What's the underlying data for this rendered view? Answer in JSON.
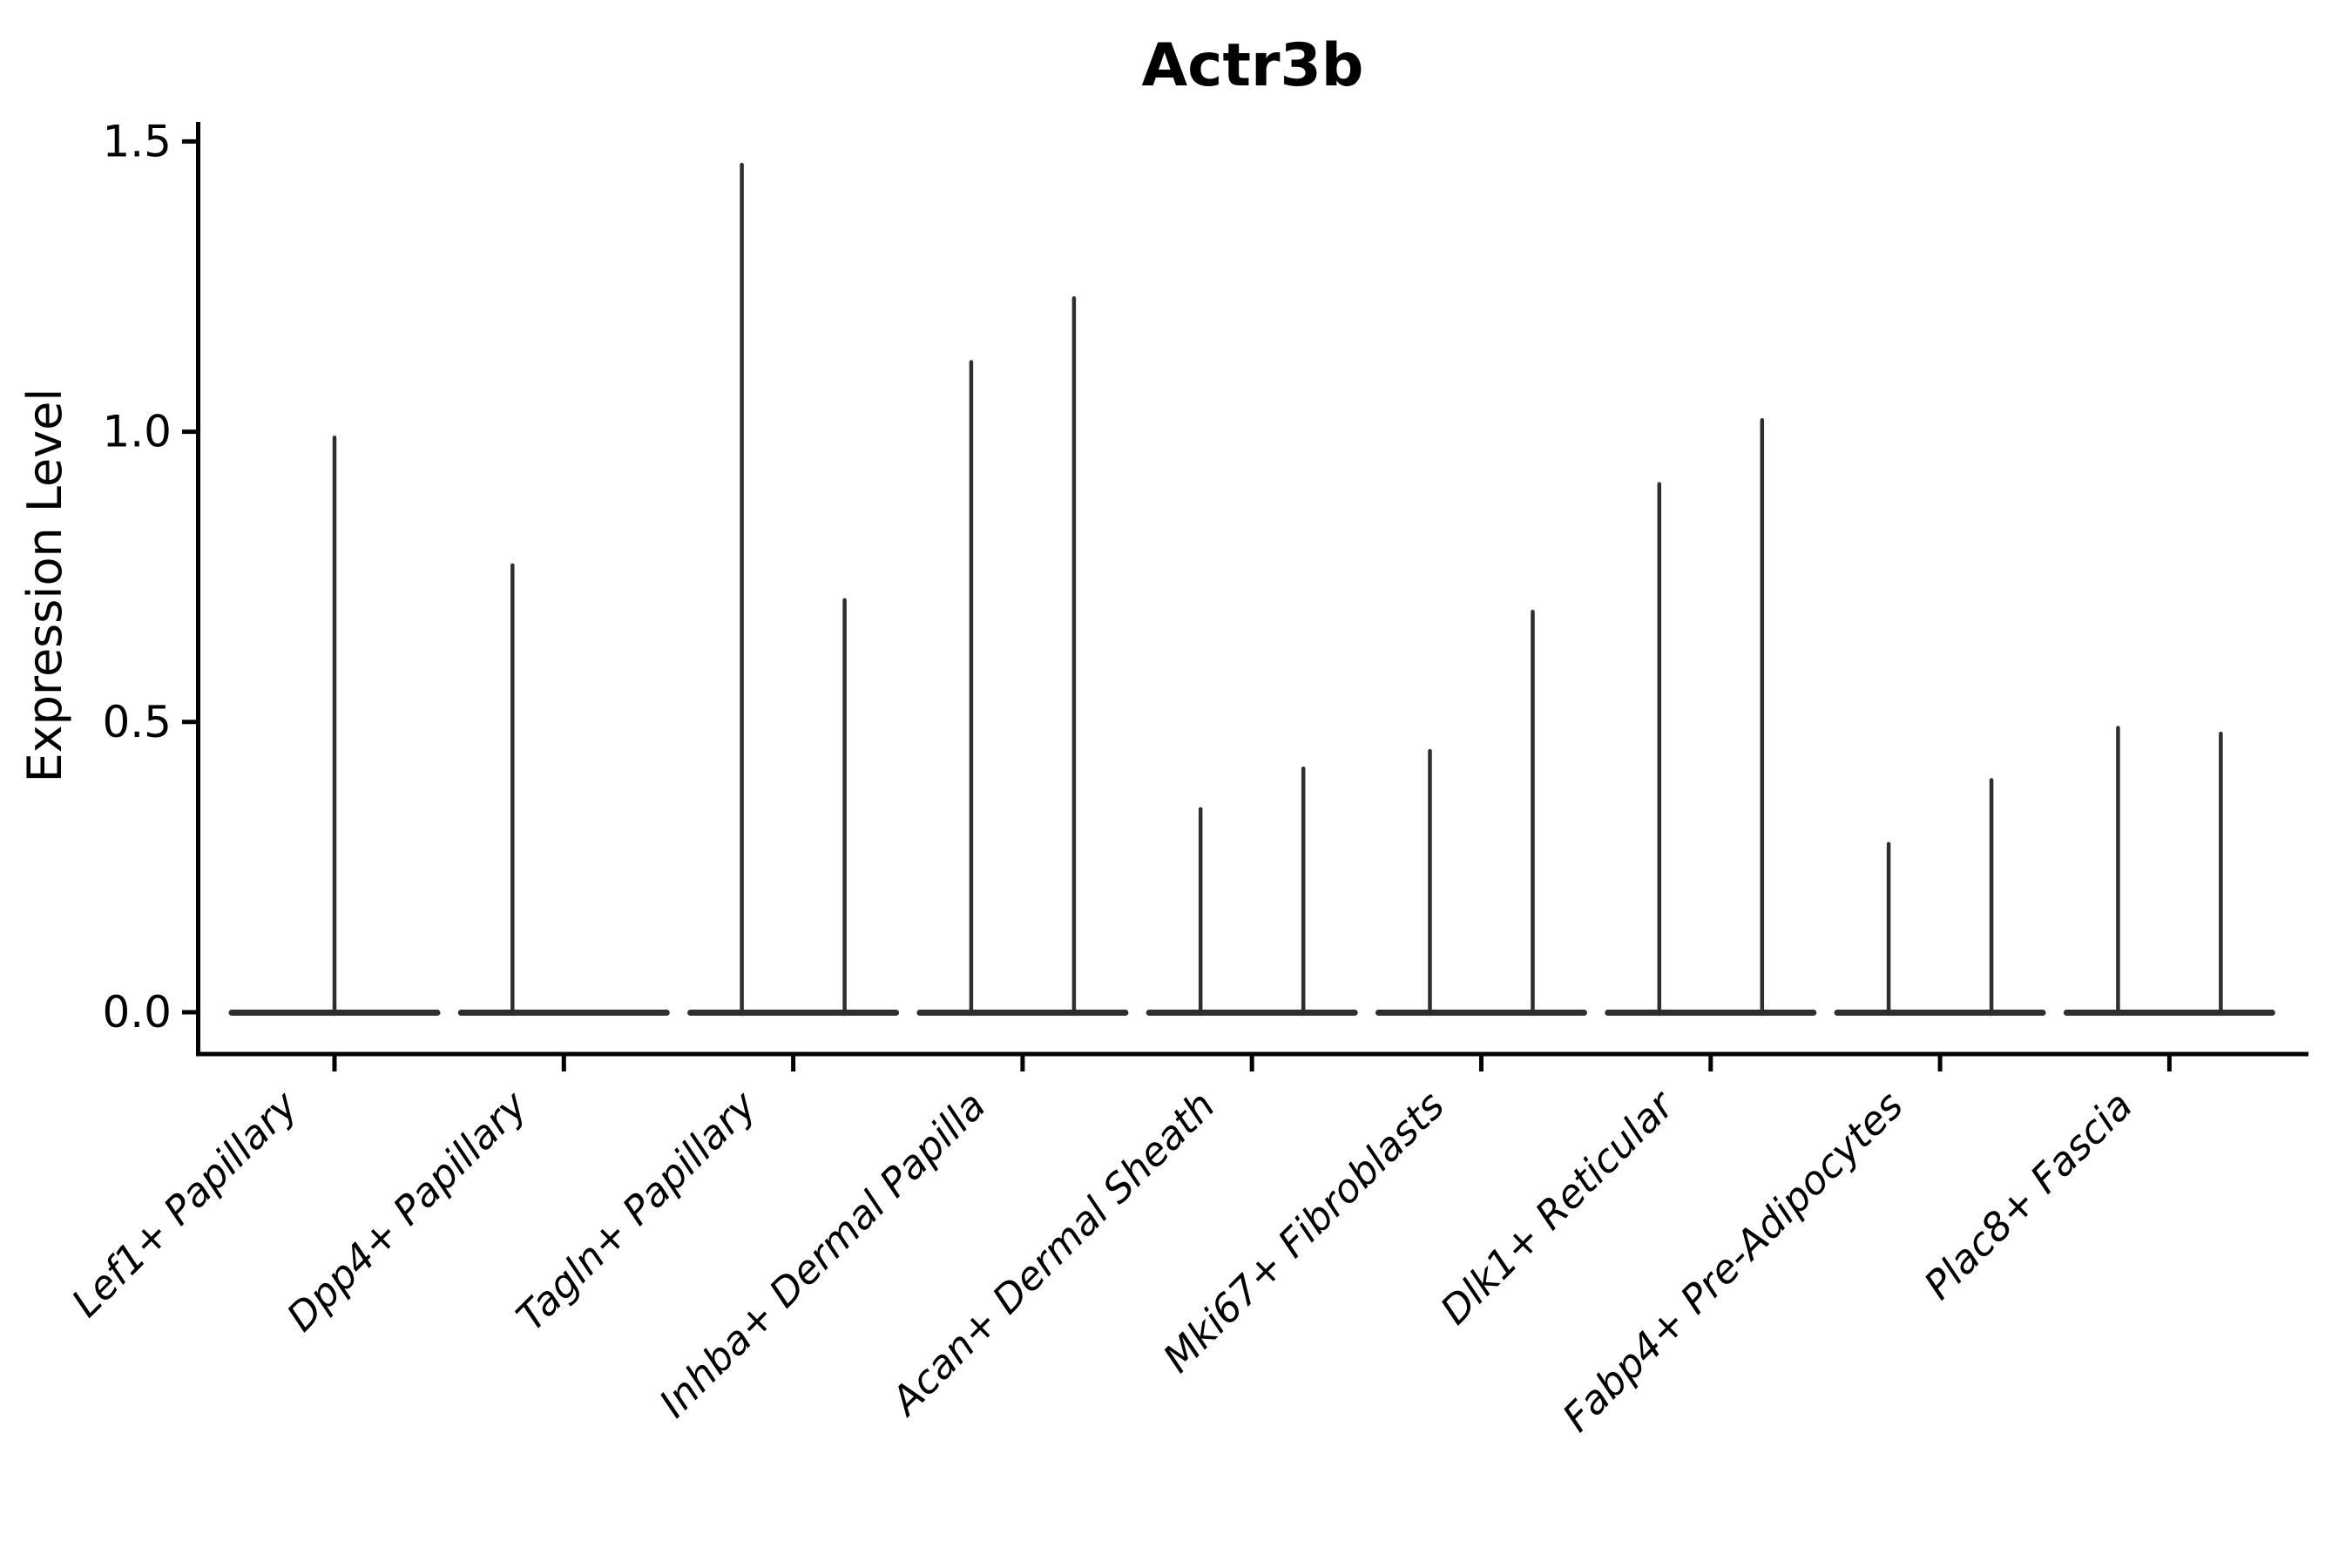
{
  "chart_data": {
    "type": "violin",
    "title": "Actr3b",
    "ylabel": "Expression Level",
    "xlabel": "",
    "yticks": [
      0.0,
      0.5,
      1.0,
      1.5
    ],
    "ylim": [
      0,
      1.5
    ],
    "grid": false,
    "legend": null,
    "background": "#ffffff",
    "violin_color": "#2e2e2e",
    "axis_color": "#000000",
    "categories": [
      "Lef1+ Papillary",
      "Dpp4+ Papillary",
      "Tagln+ Papillary",
      "Inhba+ Dermal Papilla",
      "Acan+ Dermal Sheath",
      "Mki67+ Fibroblasts",
      "Dlk1+ Reticular",
      "Fabp4+ Pre-Adipocytes",
      "Plac8+ Fascia"
    ],
    "violins": [
      [
        {
          "pos": "center",
          "max": 0.99
        }
      ],
      [
        {
          "pos": "left",
          "max": 0.77
        },
        {
          "pos": "right",
          "max": 0
        }
      ],
      [
        {
          "pos": "left",
          "max": 1.46
        },
        {
          "pos": "right",
          "max": 0.71
        }
      ],
      [
        {
          "pos": "left",
          "max": 1.12
        },
        {
          "pos": "right",
          "max": 1.23
        }
      ],
      [
        {
          "pos": "left",
          "max": 0.35
        },
        {
          "pos": "right",
          "max": 0.42
        }
      ],
      [
        {
          "pos": "left",
          "max": 0.45
        },
        {
          "pos": "right",
          "max": 0.69
        }
      ],
      [
        {
          "pos": "left",
          "max": 0.91
        },
        {
          "pos": "right",
          "max": 1.02
        }
      ],
      [
        {
          "pos": "left",
          "max": 0.29
        },
        {
          "pos": "right",
          "max": 0.4
        }
      ],
      [
        {
          "pos": "left",
          "max": 0.49
        },
        {
          "pos": "right",
          "max": 0.48
        }
      ]
    ]
  }
}
